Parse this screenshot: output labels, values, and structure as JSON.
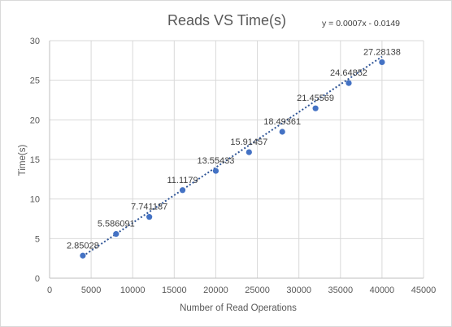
{
  "chart_data": {
    "type": "scatter",
    "title": "Reads VS Time(s)",
    "xlabel": "Number  of Read Operations",
    "ylabel": "Time(s)",
    "xlim": [
      0,
      45000
    ],
    "ylim": [
      0,
      30
    ],
    "x_ticks": [
      0,
      5000,
      10000,
      15000,
      20000,
      25000,
      30000,
      35000,
      40000,
      45000
    ],
    "y_ticks": [
      0,
      5,
      10,
      15,
      20,
      25,
      30
    ],
    "grid": true,
    "legend": "none",
    "point_color": "#4472c4",
    "trendline_color": "#2f5597",
    "x": [
      4000,
      8000,
      12000,
      16000,
      20000,
      24000,
      28000,
      32000,
      36000,
      40000
    ],
    "y": [
      2.85028,
      5.586091,
      7.741187,
      11.1179,
      13.55433,
      15.91457,
      18.49361,
      21.45569,
      24.64852,
      27.28138
    ],
    "data_labels": [
      "2.85028",
      "5.586091",
      "7.741187",
      "11.1179",
      "13.55433",
      "15.91457",
      "18.49361",
      "21.45569",
      "24.64852",
      "27.28138"
    ],
    "trendline": {
      "type": "linear",
      "equation": "y = 0.0007x - 0.0149",
      "slope": 0.0007,
      "intercept": -0.0149
    }
  }
}
